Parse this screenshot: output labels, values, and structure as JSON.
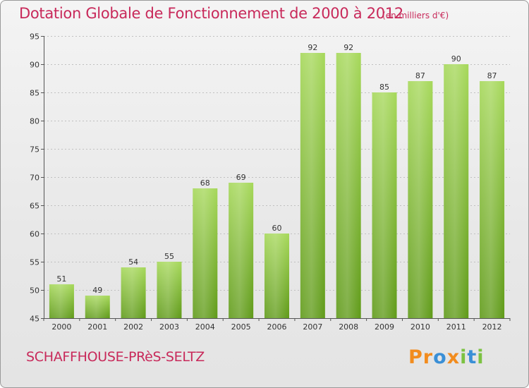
{
  "page": {
    "title": "Dotation Globale de Fonctionnement de 2000 à 2012",
    "subtitle": "(en milliers d'€)",
    "commune": "SCHAFFHOUSE-PRèS-SELTZ",
    "logo_text": "Proxiti",
    "logo_letters": [
      "P",
      "r",
      "o",
      "x",
      "i",
      "t",
      "i"
    ],
    "logo_colors": [
      "#f28c1e",
      "#f28c1e",
      "#3a8fd6",
      "#f28c1e",
      "#7cc242",
      "#3a8fd6",
      "#7cc242"
    ]
  },
  "colors": {
    "title": "#c8295a",
    "bar_top": "#a6d85a",
    "bar_bottom": "#5f9a18",
    "grid": "#c0c0c0",
    "axis": "#555555"
  },
  "chart_data": {
    "type": "bar",
    "categories": [
      "2000",
      "2001",
      "2002",
      "2003",
      "2004",
      "2005",
      "2006",
      "2007",
      "2008",
      "2009",
      "2010",
      "2011",
      "2012"
    ],
    "values": [
      51,
      49,
      54,
      55,
      68,
      69,
      60,
      92,
      92,
      85,
      87,
      90,
      87
    ],
    "value_labels": [
      "51",
      "49",
      "54",
      "55",
      "68",
      "69",
      "60",
      "92",
      "92",
      "85",
      "87",
      "90",
      "87"
    ],
    "ylim": [
      45,
      95
    ],
    "yticks": [
      45,
      50,
      55,
      60,
      65,
      70,
      75,
      80,
      85,
      90,
      95
    ],
    "ytick_labels": [
      "45",
      "50",
      "55",
      "60",
      "65",
      "70",
      "75",
      "80",
      "85",
      "90",
      "95"
    ],
    "grid": true,
    "legend": "none"
  }
}
